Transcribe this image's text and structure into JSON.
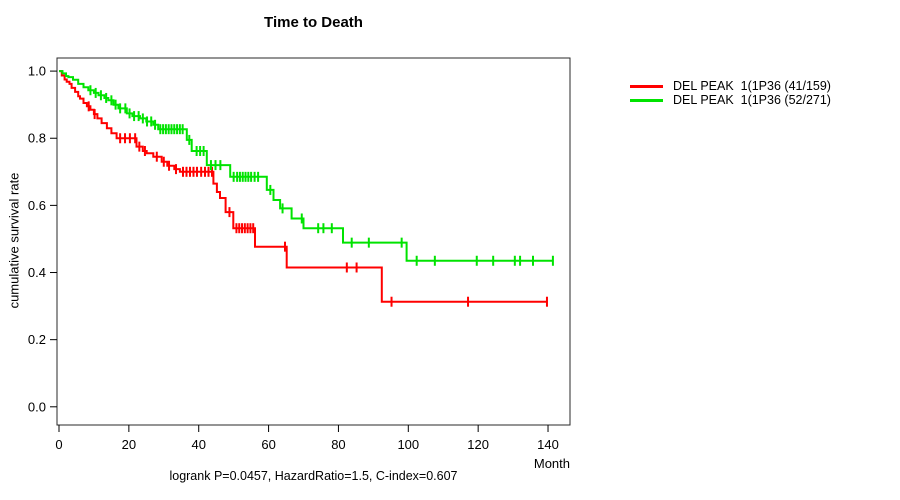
{
  "chart_data": {
    "type": "line",
    "subtype": "kaplan-meier-step",
    "title": "Time to Death",
    "xlabel": "Month",
    "ylabel": "cumulative survival rate",
    "caption": "logrank P=0.0457, HazardRatio=1.5, C-index=0.607",
    "xlim": [
      0,
      147
    ],
    "ylim": [
      0,
      1.04
    ],
    "grid": false,
    "legend_position": "right-outside",
    "x_ticks": [
      {
        "v": 0,
        "label": "0"
      },
      {
        "v": 20,
        "label": "20"
      },
      {
        "v": 40,
        "label": "40"
      },
      {
        "v": 60,
        "label": "60"
      },
      {
        "v": 80,
        "label": "80"
      },
      {
        "v": 100,
        "label": "100"
      },
      {
        "v": 120,
        "label": "120"
      },
      {
        "v": 140,
        "label": "140"
      }
    ],
    "y_ticks": [
      {
        "v": 0.0,
        "label": "0.0"
      },
      {
        "v": 0.2,
        "label": "0.2"
      },
      {
        "v": 0.4,
        "label": "0.4"
      },
      {
        "v": 0.6,
        "label": "0.6"
      },
      {
        "v": 0.8,
        "label": "0.8"
      },
      {
        "v": 1.0,
        "label": "1.0"
      }
    ],
    "series": [
      {
        "name": "DEL PEAK  1(1P36 (41/159)",
        "events": "41/159",
        "color": "#ff0000",
        "end_time": 139.7,
        "steps": [
          [
            0,
            1.0
          ],
          [
            0.8,
            0.987
          ],
          [
            1.6,
            0.975
          ],
          [
            2.2,
            0.968
          ],
          [
            3.0,
            0.962
          ],
          [
            3.6,
            0.95
          ],
          [
            4.6,
            0.938
          ],
          [
            5.5,
            0.925
          ],
          [
            6.0,
            0.918
          ],
          [
            7.0,
            0.905
          ],
          [
            8.0,
            0.895
          ],
          [
            9.0,
            0.885
          ],
          [
            10.0,
            0.872
          ],
          [
            11.0,
            0.859
          ],
          [
            12.2,
            0.845
          ],
          [
            13.7,
            0.83
          ],
          [
            15.0,
            0.815
          ],
          [
            16.5,
            0.8
          ],
          [
            22.2,
            0.775
          ],
          [
            24.0,
            0.762
          ],
          [
            25.1,
            0.755
          ],
          [
            27.0,
            0.745
          ],
          [
            29.4,
            0.73
          ],
          [
            31.0,
            0.718
          ],
          [
            33.0,
            0.708
          ],
          [
            34.6,
            0.7
          ],
          [
            44.2,
            0.665
          ],
          [
            45.2,
            0.64
          ],
          [
            46.1,
            0.622
          ],
          [
            47.7,
            0.58
          ],
          [
            49.9,
            0.532
          ],
          [
            56.1,
            0.477
          ],
          [
            65.2,
            0.415
          ],
          [
            92.4,
            0.313
          ]
        ],
        "censor_times": [
          8.5,
          10.2,
          17.5,
          18.9,
          20.3,
          21.8,
          23.0,
          24.6,
          28.0,
          30.0,
          31.5,
          33.5,
          35.5,
          36.5,
          37.5,
          38.5,
          39.5,
          40.7,
          41.8,
          42.8,
          43.8,
          48.8,
          50.8,
          51.6,
          52.4,
          53.2,
          54.0,
          54.8,
          55.6,
          64.7,
          82.4,
          85.2,
          95.2,
          117.1,
          139.7
        ]
      },
      {
        "name": "DEL PEAK  1(1P36 (52/271)",
        "events": "52/271",
        "color": "#00e300",
        "end_time": 141.4,
        "steps": [
          [
            0,
            1.0
          ],
          [
            1.0,
            0.993
          ],
          [
            2.0,
            0.985
          ],
          [
            2.7,
            0.982
          ],
          [
            4.0,
            0.974
          ],
          [
            5.5,
            0.962
          ],
          [
            7.0,
            0.952
          ],
          [
            8.4,
            0.943
          ],
          [
            10.0,
            0.935
          ],
          [
            11.3,
            0.928
          ],
          [
            13.0,
            0.92
          ],
          [
            14.1,
            0.913
          ],
          [
            15.6,
            0.9
          ],
          [
            17.0,
            0.889
          ],
          [
            19.4,
            0.874
          ],
          [
            21.0,
            0.866
          ],
          [
            23.2,
            0.859
          ],
          [
            25.0,
            0.85
          ],
          [
            27.0,
            0.84
          ],
          [
            28.4,
            0.827
          ],
          [
            36.6,
            0.795
          ],
          [
            38.0,
            0.762
          ],
          [
            42.3,
            0.72
          ],
          [
            49.0,
            0.685
          ],
          [
            59.5,
            0.646
          ],
          [
            61.4,
            0.616
          ],
          [
            63.3,
            0.591
          ],
          [
            66.6,
            0.561
          ],
          [
            70.0,
            0.532
          ],
          [
            81.3,
            0.489
          ],
          [
            99.5,
            0.435
          ]
        ],
        "censor_times": [
          9.0,
          10.5,
          12.0,
          13.5,
          15.0,
          16.2,
          17.5,
          19.0,
          20.2,
          21.5,
          22.8,
          24.0,
          25.2,
          26.4,
          27.5,
          29.0,
          29.8,
          30.6,
          31.4,
          32.2,
          33.0,
          33.8,
          34.6,
          35.4,
          37.3,
          39.4,
          40.4,
          41.4,
          43.5,
          44.8,
          46.2,
          50.0,
          51.0,
          51.8,
          52.6,
          53.4,
          54.2,
          55.0,
          56.0,
          57.0,
          60.5,
          64.0,
          69.5,
          74.2,
          75.7,
          78.1,
          83.8,
          88.7,
          98.1,
          102.4,
          107.6,
          119.6,
          124.3,
          130.5,
          132.0,
          135.7,
          141.4
        ]
      }
    ]
  }
}
